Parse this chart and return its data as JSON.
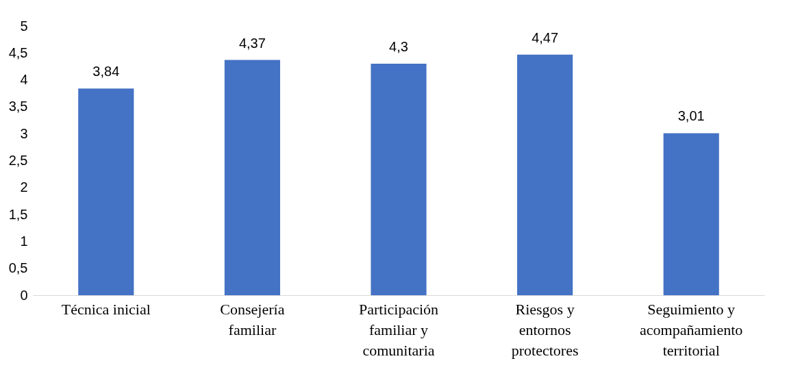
{
  "chart_data": {
    "type": "bar",
    "categories": [
      "Técnica inicial",
      "Consejería familiar",
      "Participación familiar y comunitaria",
      "Riesgos y entornos protectores",
      "Seguimiento y acompañamiento territorial"
    ],
    "values": [
      3.84,
      4.37,
      4.3,
      4.47,
      3.01
    ],
    "value_labels": [
      "3,84",
      "4,37",
      "4,3",
      "4,47",
      "3,01"
    ],
    "color": "#4472c4",
    "ylim": [
      0,
      5
    ],
    "yticks": [
      0,
      {
        "value": 0.5,
        "label": "0,5"
      },
      1,
      {
        "value": 1.5,
        "label": "1,5"
      },
      2,
      {
        "value": 2.5,
        "label": "2,5"
      },
      3,
      {
        "value": 3.5,
        "label": "3,5"
      },
      4,
      {
        "value": 4.5,
        "label": "4,5"
      },
      5
    ],
    "grid": false
  }
}
